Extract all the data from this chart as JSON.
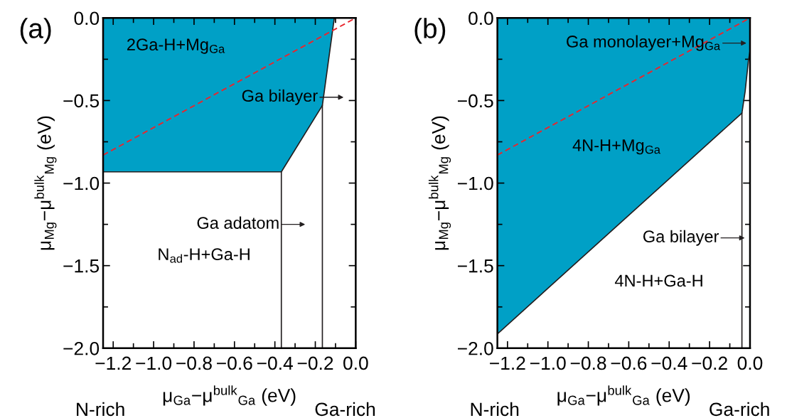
{
  "chart_data": [
    {
      "type": "area",
      "title": "(a)",
      "xlabel": "μ$_{Ga}$−μ$^{bulk}$$_{Ga}$ (eV)",
      "ylabel": "μ$_{Mg}$−μ$^{bulk}$$_{Mg}$ (eV)",
      "xlim": [
        -1.25,
        0.0
      ],
      "ylim": [
        -2.0,
        0.0
      ],
      "xticks": [
        {
          "value": -1.2,
          "label": "−1.2"
        },
        {
          "value": -1.0,
          "label": "−1.0"
        },
        {
          "value": -0.8,
          "label": "−0.8"
        },
        {
          "value": -0.6,
          "label": "−0.6"
        },
        {
          "value": -0.4,
          "label": "−0.4"
        },
        {
          "value": -0.2,
          "label": "−0.2"
        },
        {
          "value": 0.0,
          "label": "0.0"
        }
      ],
      "yticks": [
        {
          "value": -2.0,
          "label": "−2.0"
        },
        {
          "value": -1.5,
          "label": "−1.5"
        },
        {
          "value": -1.0,
          "label": "−1.0"
        },
        {
          "value": -0.5,
          "label": "−0.5"
        },
        {
          "value": 0.0,
          "label": "0.0"
        }
      ],
      "grid": false,
      "legend": false,
      "series": [
        {
          "color": "#00a0c6",
          "x": [
            -1.25,
            -0.368,
            -0.165,
            -0.106
          ],
          "values": [
            -0.932,
            -0.932,
            -0.53,
            0.0
          ]
        },
        {
          "type": "line",
          "color": "#231f20",
          "x": [
            -0.368,
            -0.368
          ],
          "values": [
            -0.932,
            -2.0
          ]
        },
        {
          "type": "line",
          "color": "#231f20",
          "x": [
            -0.165,
            -0.165
          ],
          "values": [
            -0.53,
            -2.0
          ]
        },
        {
          "type": "line",
          "color": "#e8262e",
          "line_style": "dashed",
          "x": [
            -1.25,
            0.0
          ],
          "values": [
            -0.83,
            0.0
          ]
        }
      ],
      "annotations": [
        "2Ga-H+Mg$_{Ga}$",
        "N$_{ad}$-H+Ga-H",
        "Ga bilayer",
        "Ga adatom",
        "N-rich",
        "Ga-rich"
      ]
    },
    {
      "type": "area",
      "title": "(b)",
      "xlabel": "μ$_{Ga}$−μ$^{bulk}$$_{Ga}$ (eV)",
      "ylabel": "μ$_{Mg}$−μ$^{bulk}$$_{Mg}$ (eV)",
      "xlim": [
        -1.25,
        0.0
      ],
      "ylim": [
        -2.0,
        0.0
      ],
      "xticks": [
        {
          "value": -1.2,
          "label": "−1.2"
        },
        {
          "value": -1.0,
          "label": "−1.0"
        },
        {
          "value": -0.8,
          "label": "−0.8"
        },
        {
          "value": -0.6,
          "label": "−0.6"
        },
        {
          "value": -0.4,
          "label": "−0.4"
        },
        {
          "value": -0.2,
          "label": "−0.2"
        },
        {
          "value": 0.0,
          "label": "0.0"
        }
      ],
      "yticks": [
        {
          "value": -2.0,
          "label": "−2.0"
        },
        {
          "value": -1.5,
          "label": "−1.5"
        },
        {
          "value": -1.0,
          "label": "−1.0"
        },
        {
          "value": -0.5,
          "label": "−0.5"
        },
        {
          "value": 0.0,
          "label": "0.0"
        }
      ],
      "grid": false,
      "legend": false,
      "series": [
        {
          "color": "#00a0c6",
          "x": [
            -1.25,
            -0.04,
            -0.024,
            -0.008,
            0.0
          ],
          "values": [
            -1.914,
            -0.576,
            -0.444,
            -0.26,
            -0.2
          ]
        },
        {
          "type": "line",
          "color": "#231f20",
          "x": [
            -0.04,
            -0.04
          ],
          "values": [
            -0.576,
            -2.0
          ]
        },
        {
          "type": "line",
          "color": "#e8262e",
          "line_style": "dashed",
          "x": [
            -1.25,
            0.0
          ],
          "values": [
            -0.83,
            0.0
          ]
        }
      ],
      "annotations": [
        "4N-H+Mg$_{Ga}$",
        "4N-H+Ga-H",
        "Ga monolayer+Mg$_{Ga}$",
        "Ga bilayer",
        "N-rich",
        "Ga-rich"
      ]
    }
  ]
}
